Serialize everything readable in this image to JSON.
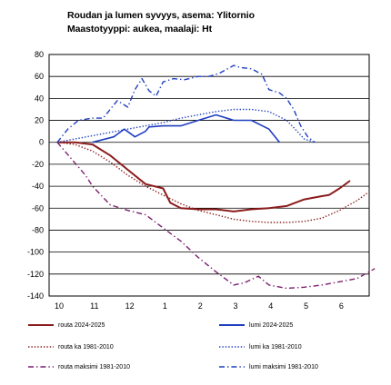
{
  "title_line1": "Roudan ja lumen syvyys, asema: Ylitornio",
  "title_line2": "Maastotyyppi: aukea, maalaji: Ht",
  "chart_data": {
    "type": "line",
    "ylim": [
      -140,
      80
    ],
    "yticks": [
      80,
      60,
      40,
      20,
      0,
      -20,
      -40,
      -60,
      -80,
      -100,
      -120,
      -140
    ],
    "xlim": [
      0,
      9
    ],
    "xticks": [
      {
        "label": "10",
        "x": 0
      },
      {
        "label": "11",
        "x": 1
      },
      {
        "label": "12",
        "x": 2
      },
      {
        "label": "1",
        "x": 3
      },
      {
        "label": "2",
        "x": 4
      },
      {
        "label": "3",
        "x": 5
      },
      {
        "label": "4",
        "x": 6
      },
      {
        "label": "5",
        "x": 7
      },
      {
        "label": "6",
        "x": 8
      }
    ],
    "grid": "horizontal",
    "legend_position": "bottom",
    "series": [
      {
        "name": "routa 2024-2025",
        "color": "#8b1c1c",
        "style": "solid",
        "width": 2,
        "points": [
          [
            0,
            0
          ],
          [
            0.5,
            0
          ],
          [
            1,
            -2
          ],
          [
            1.5,
            -12
          ],
          [
            2,
            -25
          ],
          [
            2.5,
            -38
          ],
          [
            3,
            -42
          ],
          [
            3.2,
            -55
          ],
          [
            3.5,
            -60
          ],
          [
            4,
            -61
          ],
          [
            4.5,
            -61
          ],
          [
            5,
            -63
          ],
          [
            5.5,
            -61
          ],
          [
            6,
            -60
          ],
          [
            6.5,
            -58
          ],
          [
            7,
            -52
          ],
          [
            7.5,
            -49
          ],
          [
            7.7,
            -48
          ],
          [
            8,
            -42
          ],
          [
            8.3,
            -35
          ]
        ]
      },
      {
        "name": "lumi 2024-2025",
        "color": "#1f3fbf",
        "style": "solid",
        "width": 1.6,
        "points": [
          [
            1,
            0
          ],
          [
            1.6,
            5
          ],
          [
            1.9,
            12
          ],
          [
            2.2,
            5
          ],
          [
            2.5,
            10
          ],
          [
            2.6,
            14
          ],
          [
            3,
            15
          ],
          [
            3.5,
            15
          ],
          [
            4,
            20
          ],
          [
            4.5,
            25
          ],
          [
            5,
            20
          ],
          [
            5.5,
            20
          ],
          [
            6,
            12
          ],
          [
            6.3,
            0
          ]
        ]
      },
      {
        "name": "routa ka 1981-2010",
        "color": "#8b1c1c",
        "style": "dotted",
        "width": 1.4,
        "points": [
          [
            0,
            0
          ],
          [
            0.5,
            -2
          ],
          [
            1,
            -8
          ],
          [
            1.5,
            -18
          ],
          [
            2,
            -30
          ],
          [
            2.5,
            -40
          ],
          [
            3,
            -48
          ],
          [
            3.5,
            -56
          ],
          [
            4,
            -62
          ],
          [
            4.5,
            -66
          ],
          [
            5,
            -70
          ],
          [
            5.5,
            -72
          ],
          [
            6,
            -73
          ],
          [
            6.5,
            -73
          ],
          [
            7,
            -72
          ],
          [
            7.5,
            -69
          ],
          [
            8,
            -62
          ],
          [
            8.5,
            -53
          ],
          [
            8.8,
            -46
          ]
        ]
      },
      {
        "name": "lumi ka 1981-2010",
        "color": "#1f3fbf",
        "style": "dotted",
        "width": 1.4,
        "points": [
          [
            0,
            0
          ],
          [
            0.5,
            3
          ],
          [
            1,
            6
          ],
          [
            1.5,
            9
          ],
          [
            2,
            12
          ],
          [
            2.5,
            15
          ],
          [
            3,
            18
          ],
          [
            3.5,
            22
          ],
          [
            4,
            25
          ],
          [
            4.5,
            28
          ],
          [
            5,
            30
          ],
          [
            5.5,
            30
          ],
          [
            6,
            28
          ],
          [
            6.5,
            20
          ],
          [
            6.8,
            10
          ],
          [
            7,
            3
          ],
          [
            7.3,
            0
          ]
        ]
      },
      {
        "name": "routa maksimi 1981-2010",
        "color": "#7a1f6d",
        "style": "dashdot",
        "width": 1.4,
        "points": [
          [
            0,
            0
          ],
          [
            0.4,
            -15
          ],
          [
            0.8,
            -30
          ],
          [
            1,
            -40
          ],
          [
            1.5,
            -57
          ],
          [
            2,
            -62
          ],
          [
            2.5,
            -66
          ],
          [
            3,
            -78
          ],
          [
            3.5,
            -90
          ],
          [
            4,
            -105
          ],
          [
            4.5,
            -118
          ],
          [
            5,
            -130
          ],
          [
            5.3,
            -128
          ],
          [
            5.7,
            -122
          ],
          [
            6,
            -130
          ],
          [
            6.5,
            -133
          ],
          [
            7,
            -132
          ],
          [
            7.5,
            -130
          ],
          [
            8,
            -127
          ],
          [
            8.5,
            -124
          ],
          [
            9,
            -115
          ]
        ]
      },
      {
        "name": "lumi maksimi 1981-2010",
        "color": "#1f3fbf",
        "style": "dashdot",
        "width": 1.4,
        "points": [
          [
            0,
            0
          ],
          [
            0.3,
            12
          ],
          [
            0.6,
            20
          ],
          [
            1,
            22
          ],
          [
            1.3,
            22
          ],
          [
            1.5,
            30
          ],
          [
            1.7,
            38
          ],
          [
            2,
            32
          ],
          [
            2.2,
            48
          ],
          [
            2.4,
            58
          ],
          [
            2.6,
            47
          ],
          [
            2.8,
            42
          ],
          [
            3,
            55
          ],
          [
            3.3,
            58
          ],
          [
            3.6,
            57
          ],
          [
            4,
            60
          ],
          [
            4.3,
            60
          ],
          [
            4.6,
            63
          ],
          [
            5,
            70
          ],
          [
            5.2,
            68
          ],
          [
            5.5,
            67
          ],
          [
            5.8,
            62
          ],
          [
            6,
            48
          ],
          [
            6.3,
            45
          ],
          [
            6.5,
            40
          ],
          [
            6.7,
            30
          ],
          [
            6.9,
            15
          ],
          [
            7.1,
            5
          ],
          [
            7.3,
            0
          ]
        ]
      }
    ]
  },
  "legend": [
    {
      "label": "routa 2024-2025",
      "color": "#8b1c1c",
      "style": "solid"
    },
    {
      "label": "lumi 2024-2025",
      "color": "#1f3fbf",
      "style": "solid"
    },
    {
      "label": "routa ka 1981-2010",
      "color": "#8b1c1c",
      "style": "dotted"
    },
    {
      "label": "lumi ka 1981-2010",
      "color": "#1f3fbf",
      "style": "dotted"
    },
    {
      "label": "routa maksimi 1981-2010",
      "color": "#7a1f6d",
      "style": "dashdot"
    },
    {
      "label": "lumi maksimi 1981-2010",
      "color": "#1f3fbf",
      "style": "dashdot"
    }
  ]
}
